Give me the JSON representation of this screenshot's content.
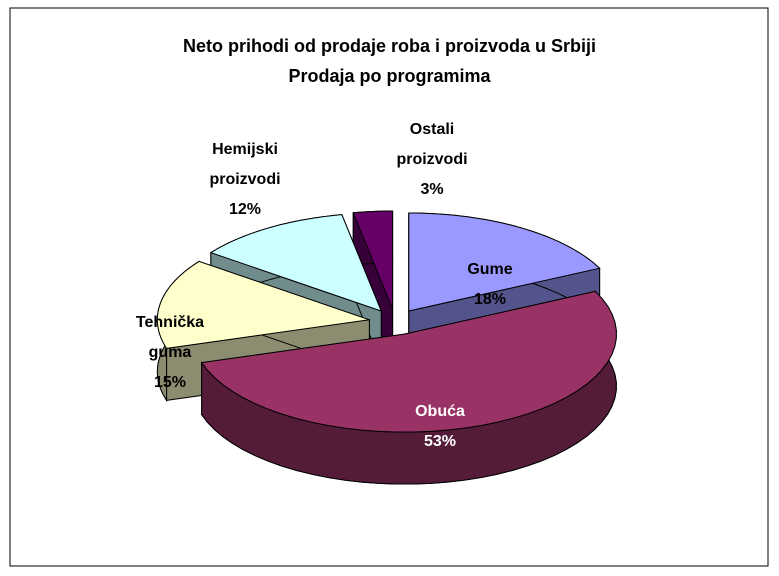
{
  "chart_data": {
    "type": "pie",
    "title": [
      "Neto prihodi od prodaje roba i proizvoda u Srbiji",
      "Prodaja po programima"
    ],
    "categories": [
      "Gume",
      "Obuća",
      "Tehnička guma",
      "Hemijski proizvodi",
      "Ostali proizvodi"
    ],
    "values": [
      18,
      53,
      15,
      12,
      3
    ],
    "value_labels": [
      "18%",
      "53%",
      "15%",
      "12%",
      "3%"
    ],
    "colors": [
      "#9999ff",
      "#993366",
      "#ffffcc",
      "#ccffff",
      "#660066"
    ]
  }
}
